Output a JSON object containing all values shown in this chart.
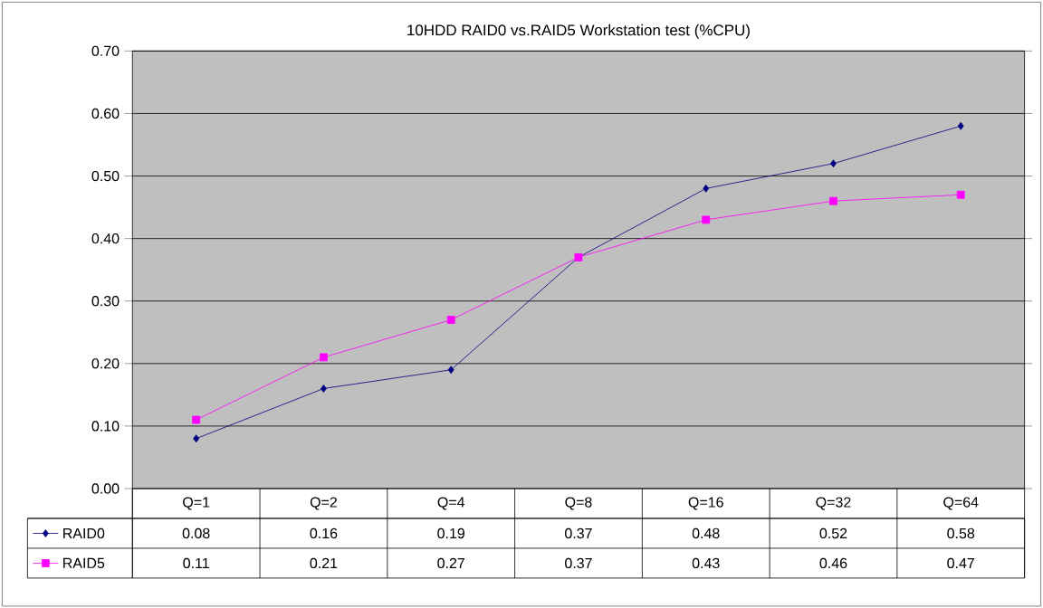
{
  "chart_data": {
    "type": "line",
    "title": "10HDD RAID0 vs.RAID5 Workstation test (%CPU)",
    "categories": [
      "Q=1",
      "Q=2",
      "Q=4",
      "Q=8",
      "Q=16",
      "Q=32",
      "Q=64"
    ],
    "series": [
      {
        "name": "RAID0",
        "color": "#000080",
        "marker": "diamond",
        "values": [
          0.08,
          0.16,
          0.19,
          0.37,
          0.48,
          0.52,
          0.58
        ]
      },
      {
        "name": "RAID5",
        "color": "#ff00ff",
        "marker": "square",
        "values": [
          0.11,
          0.21,
          0.27,
          0.37,
          0.43,
          0.46,
          0.47
        ]
      }
    ],
    "ylim": [
      0,
      0.7
    ],
    "yticks": [
      {
        "value": 0,
        "label": "0.00"
      },
      {
        "value": 0.1,
        "label": "0.10"
      },
      {
        "value": 0.2,
        "label": "0.20"
      },
      {
        "value": 0.3,
        "label": "0.30"
      },
      {
        "value": 0.4,
        "label": "0.40"
      },
      {
        "value": 0.5,
        "label": "0.50"
      },
      {
        "value": 0.6,
        "label": "0.60"
      },
      {
        "value": 0.7,
        "label": "0.70"
      }
    ],
    "grid": "y",
    "legend": "bottom",
    "data_labels": true
  }
}
